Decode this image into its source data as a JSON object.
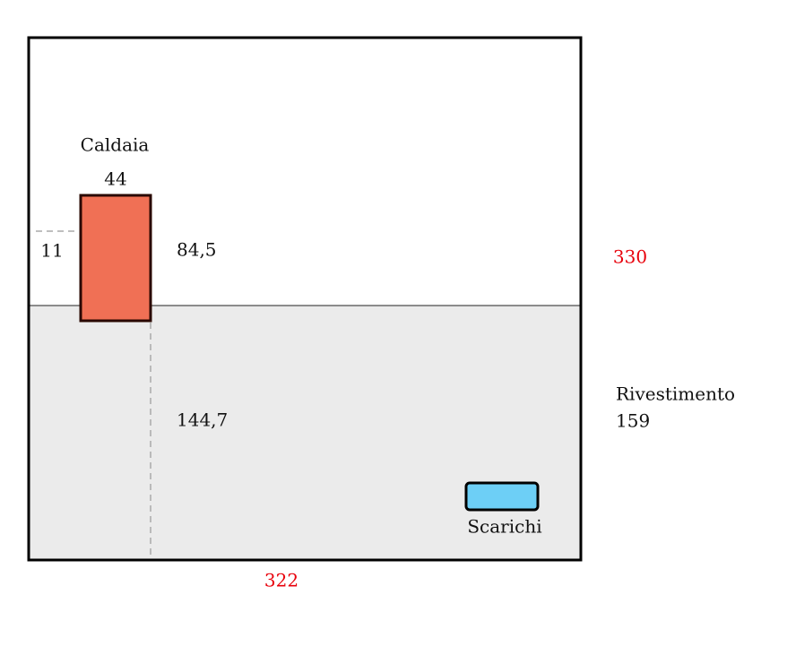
{
  "boiler": {
    "label": "Caldaia",
    "width": "44",
    "offset_left": "11",
    "height_above": "84,5"
  },
  "floor_to_boiler": "144,7",
  "wall": {
    "height": "330",
    "width": "322"
  },
  "cladding": {
    "label": "Rivestimento",
    "height": "159"
  },
  "drains": {
    "label": "Scarichi"
  }
}
